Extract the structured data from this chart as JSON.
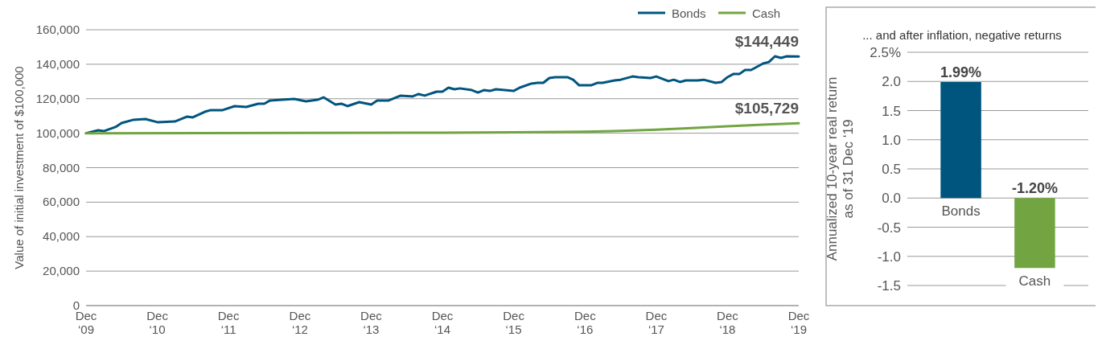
{
  "chart_data": [
    {
      "type": "line",
      "ylabel": "Value of initial investment of $100,000",
      "legend": "top right",
      "grid": "y",
      "xlim": [
        "2009-12",
        "2019-12"
      ],
      "ylim": [
        0,
        160000
      ],
      "xticks": [
        {
          "value": "2009-12",
          "label": "Dec\n‘09"
        },
        {
          "value": "2010-12",
          "label": "Dec\n‘10"
        },
        {
          "value": "2011-12",
          "label": "Dec\n‘11"
        },
        {
          "value": "2012-12",
          "label": "Dec\n‘12"
        },
        {
          "value": "2013-12",
          "label": "Dec\n‘13"
        },
        {
          "value": "2014-12",
          "label": "Dec\n‘14"
        },
        {
          "value": "2015-12",
          "label": "Dec\n‘15"
        },
        {
          "value": "2016-12",
          "label": "Dec\n‘16"
        },
        {
          "value": "2017-12",
          "label": "Dec\n‘17"
        },
        {
          "value": "2018-12",
          "label": "Dec\n‘18"
        },
        {
          "value": "2019-12",
          "label": "Dec\n‘19"
        }
      ],
      "yticks": [
        {
          "value": 0,
          "label": "0"
        },
        {
          "value": 20000,
          "label": "20,000"
        },
        {
          "value": 40000,
          "label": "40,000"
        },
        {
          "value": 60000,
          "label": "60,000"
        },
        {
          "value": 80000,
          "label": "80,000"
        },
        {
          "value": 100000,
          "label": "100,000"
        },
        {
          "value": 120000,
          "label": "120,000"
        },
        {
          "value": 140000,
          "label": "140,000"
        },
        {
          "value": 160000,
          "label": "160,000"
        }
      ],
      "series": [
        {
          "name": "Bonds",
          "color": "#00557f",
          "x": [
            "2009-12",
            "2010-02",
            "2010-03",
            "2010-05",
            "2010-06",
            "2010-08",
            "2010-10",
            "2010-12",
            "2011-03",
            "2011-05",
            "2011-06",
            "2011-08",
            "2011-09",
            "2011-11",
            "2012-01",
            "2012-03",
            "2012-05",
            "2012-06",
            "2012-07",
            "2012-09",
            "2012-11",
            "2013-01",
            "2013-03",
            "2013-04",
            "2013-06",
            "2013-07",
            "2013-08",
            "2013-10",
            "2013-12",
            "2014-01",
            "2014-03",
            "2014-05",
            "2014-07",
            "2014-08",
            "2014-09",
            "2014-11",
            "2014-12",
            "2015-01",
            "2015-02",
            "2015-03",
            "2015-05",
            "2015-06",
            "2015-07",
            "2015-08",
            "2015-09",
            "2015-12",
            "2016-01",
            "2016-03",
            "2016-04",
            "2016-05",
            "2016-06",
            "2016-07",
            "2016-09",
            "2016-10",
            "2016-11",
            "2017-01",
            "2017-02",
            "2017-03",
            "2017-05",
            "2017-06",
            "2017-08",
            "2017-09",
            "2017-11",
            "2017-12",
            "2018-02",
            "2018-03",
            "2018-04",
            "2018-05",
            "2018-07",
            "2018-08",
            "2018-10",
            "2018-11",
            "2018-12",
            "2019-01",
            "2019-02",
            "2019-03",
            "2019-04",
            "2019-06",
            "2019-07",
            "2019-08",
            "2019-09",
            "2019-10",
            "2019-12"
          ],
          "values": [
            100000,
            101700,
            101200,
            103600,
            105900,
            107800,
            108200,
            106400,
            106800,
            109600,
            109200,
            112400,
            113400,
            113400,
            115700,
            115200,
            117100,
            117100,
            119000,
            119400,
            119900,
            118500,
            119400,
            120800,
            116600,
            117100,
            115700,
            118000,
            116600,
            119000,
            119000,
            121800,
            121300,
            122700,
            121800,
            124100,
            124100,
            126400,
            125500,
            126000,
            125000,
            123600,
            125000,
            124500,
            125500,
            124500,
            126400,
            128800,
            129200,
            129200,
            132000,
            132500,
            132500,
            131000,
            127800,
            127800,
            129200,
            129200,
            130600,
            131000,
            132900,
            132500,
            132000,
            132900,
            130200,
            131000,
            129700,
            130600,
            130600,
            131000,
            129200,
            129700,
            132500,
            134400,
            134400,
            136700,
            136700,
            140400,
            141300,
            144600,
            143700,
            144600,
            144449
          ]
        },
        {
          "name": "Cash",
          "color": "#72a542",
          "x": [
            "2009-12",
            "2012-12",
            "2014-12",
            "2015-12",
            "2016-12",
            "2017-06",
            "2017-12",
            "2018-06",
            "2018-12",
            "2019-06",
            "2019-12"
          ],
          "values": [
            100000,
            100200,
            100300,
            100500,
            100900,
            101300,
            102000,
            103000,
            104000,
            105000,
            105729
          ]
        }
      ],
      "annotations": [
        {
          "text": "$144,449",
          "x": "2019-12",
          "y": 144449
        },
        {
          "text": "$105,729",
          "x": "2019-12",
          "y": 105729
        }
      ]
    },
    {
      "type": "bar",
      "title": "... and after inflation, negative returns",
      "ylabel": "Annualized 10-year real return\nas of 31 Dec ‘19",
      "grid": "y",
      "categories": [
        "Bonds",
        "Cash"
      ],
      "values": [
        1.99,
        -1.2
      ],
      "colors": [
        "#00557f",
        "#72a542"
      ],
      "value_labels": [
        "1.99%",
        "-1.20%"
      ],
      "ylim": [
        -1.5,
        2.5
      ],
      "yticks": [
        {
          "value": -1.5,
          "label": "-1.5"
        },
        {
          "value": -1,
          "label": "-1.0"
        },
        {
          "value": -0.5,
          "label": "-0.5"
        },
        {
          "value": 0,
          "label": "0.0"
        },
        {
          "value": 0.5,
          "label": "0.5"
        },
        {
          "value": 1,
          "label": "1.0"
        },
        {
          "value": 1.5,
          "label": "1.5"
        },
        {
          "value": 2,
          "label": "2.0"
        },
        {
          "value": 2.5,
          "label": "2.5%"
        }
      ]
    }
  ]
}
